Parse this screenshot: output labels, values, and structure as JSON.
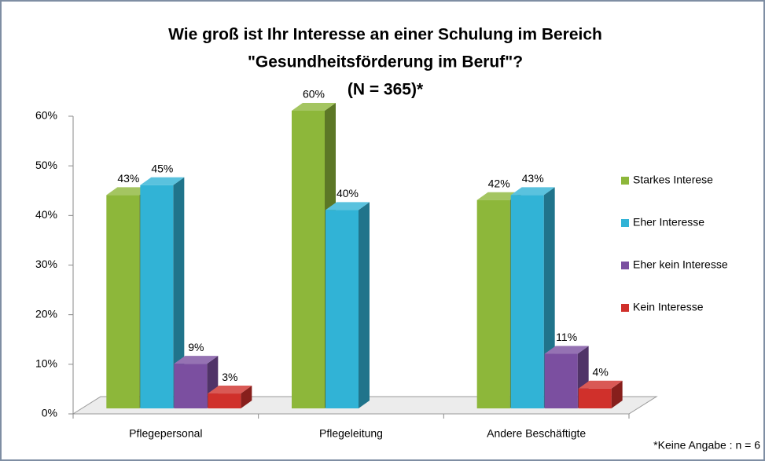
{
  "chart_data": {
    "type": "bar3d",
    "title_lines": [
      "Wie groß ist Ihr Interesse an einer Schulung im Bereich",
      "\"Gesundheitsförderung im Beruf\"?",
      "(N = 365)*"
    ],
    "categories": [
      "Pflegepersonal",
      "Pflegeleitung",
      "Andere Beschäftigte"
    ],
    "series": [
      {
        "name": "Starkes Interese",
        "color": "#8db73a",
        "values": [
          43,
          60,
          42
        ],
        "value_labels": [
          "43%",
          "60%",
          "42%"
        ]
      },
      {
        "name": "Eher Interesse",
        "color": "#31b3d6",
        "values": [
          45,
          40,
          43
        ],
        "value_labels": [
          "45%",
          "40%",
          "43%"
        ]
      },
      {
        "name": "Eher kein Interesse",
        "color": "#7b4fa0",
        "values": [
          9,
          null,
          11
        ],
        "value_labels": [
          "9%",
          null,
          "11%"
        ]
      },
      {
        "name": "Kein Interesse",
        "color": "#d0302b",
        "values": [
          3,
          null,
          4
        ],
        "value_labels": [
          "3%",
          null,
          "4%"
        ]
      }
    ],
    "ylim": [
      0,
      60
    ],
    "yticks": [
      {
        "value": 0,
        "label": "0%"
      },
      {
        "value": 10,
        "label": "10%"
      },
      {
        "value": 20,
        "label": "20%"
      },
      {
        "value": 30,
        "label": "30%"
      },
      {
        "value": 40,
        "label": "40%"
      },
      {
        "value": 50,
        "label": "50%"
      },
      {
        "value": 60,
        "label": "60%"
      }
    ],
    "legend": "right",
    "annotation": "*Keine Angabe : n = 6"
  }
}
